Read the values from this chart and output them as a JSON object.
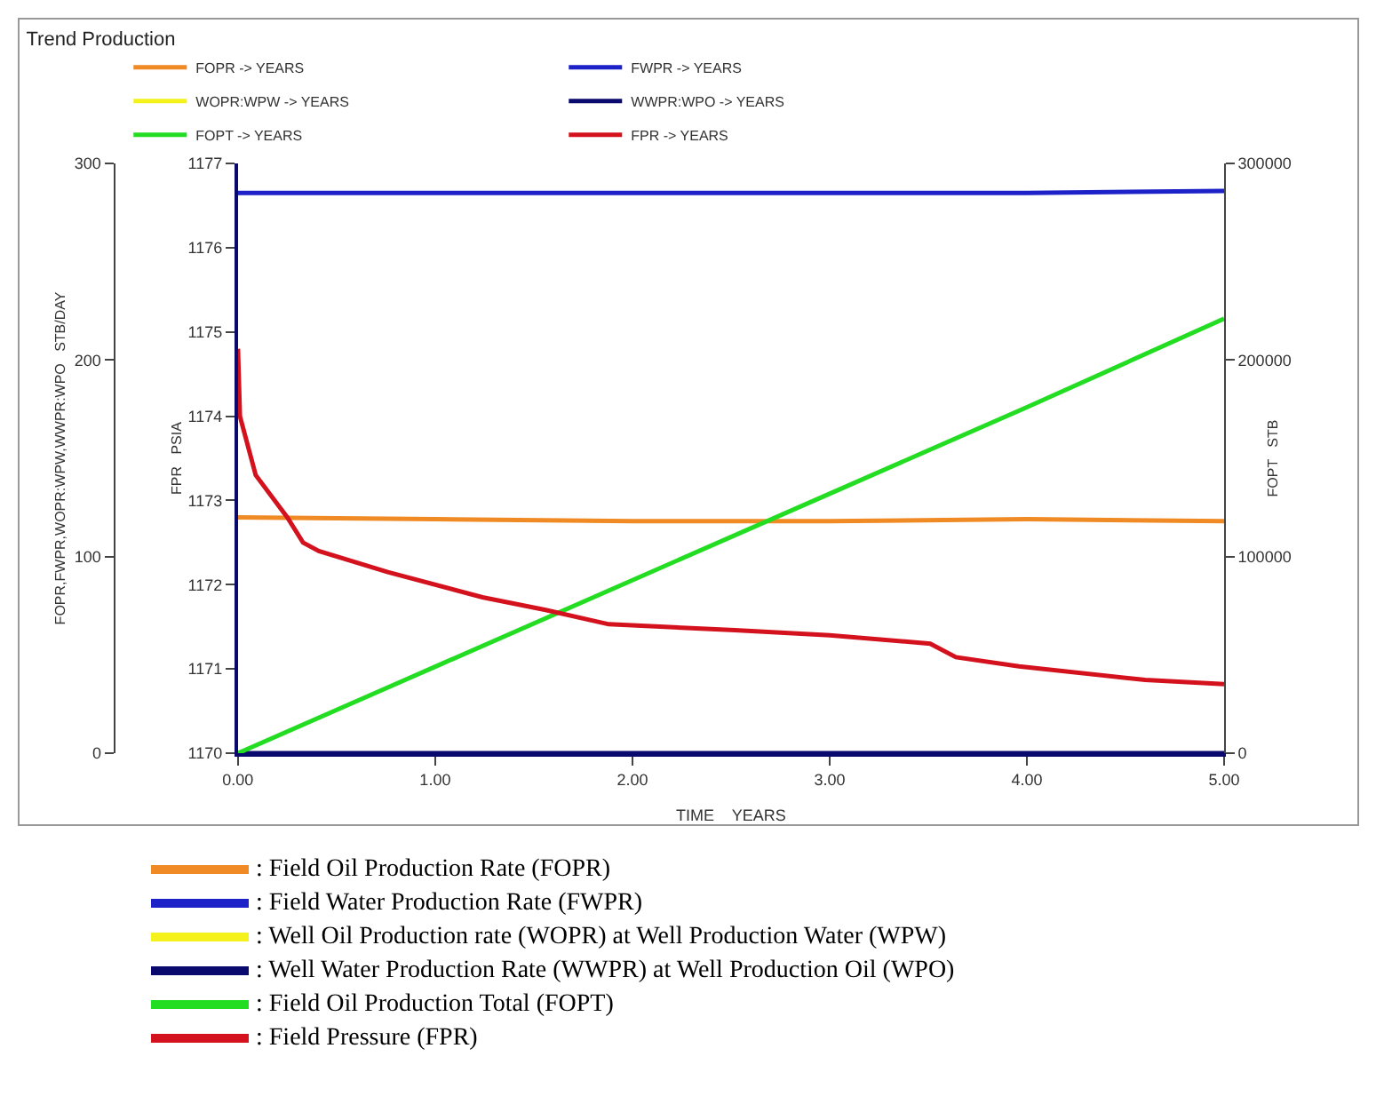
{
  "chart_data": {
    "type": "line",
    "title": "Trend Production",
    "xlabel": "TIME    YEARS",
    "ylabel": "FOPR,FWPR,WOPR:WPW,WWPR:WPO   STB/DAY",
    "y2label": "FOPT   STB",
    "y3label": "FPR   PSIA",
    "xlim": [
      0,
      5
    ],
    "xticks": [
      {
        "value": 0,
        "label": "0.00"
      },
      {
        "value": 1,
        "label": "1.00"
      },
      {
        "value": 2,
        "label": "2.00"
      },
      {
        "value": 3,
        "label": "3.00"
      },
      {
        "value": 4,
        "label": "4.00"
      },
      {
        "value": 5,
        "label": "5.00"
      }
    ],
    "ylim": [
      0,
      300
    ],
    "yticks": [
      0,
      100,
      200,
      300
    ],
    "y2lim": [
      0,
      300000
    ],
    "y2ticks": [
      0,
      100000,
      200000,
      300000
    ],
    "y3lim": [
      1170,
      1177
    ],
    "y3ticks": [
      1170,
      1171,
      1172,
      1173,
      1174,
      1175,
      1176,
      1177
    ],
    "x": [
      0,
      1,
      2,
      3,
      4,
      5
    ],
    "series": [
      {
        "name": "FOPR -> YEARS",
        "color": "#f08a24",
        "values": [
          120,
          119,
          118,
          118,
          119,
          118
        ]
      },
      {
        "name": "FWPR -> YEARS",
        "color": "#1c22c8",
        "values": [
          285,
          285,
          285,
          285,
          285,
          286
        ]
      },
      {
        "name": "WOPR:WPW -> YEARS",
        "color": "#f4f21a",
        "values": [
          null,
          null,
          null,
          null,
          null,
          null
        ]
      },
      {
        "name": "WWPR:WPO -> YEARS",
        "color": "#0a0a6e",
        "values": [
          0,
          0,
          0,
          0,
          0,
          0
        ]
      },
      {
        "name": "FOPT -> YEARS",
        "color": "#22dd22",
        "values": [
          0,
          44000,
          88000,
          132000,
          176000,
          221000
        ],
        "axis": "y2"
      },
      {
        "name": "FPR -> YEARS",
        "color": "#d4121e",
        "axis": "y3",
        "x": [
          0,
          0.01,
          0.09,
          0.25,
          0.33,
          0.41,
          0.76,
          1.24,
          1.56,
          1.88,
          2.52,
          3.0,
          3.51,
          3.64,
          3.96,
          4.6,
          5.0
        ],
        "values": [
          1174.8,
          1174.0,
          1173.3,
          1172.8,
          1172.5,
          1172.4,
          1172.15,
          1171.85,
          1171.7,
          1171.53,
          1171.46,
          1171.4,
          1171.3,
          1171.14,
          1171.03,
          1170.87,
          1170.82
        ]
      }
    ],
    "legend": "top",
    "annotations": [
      ": Field Oil Production Rate (FOPR)",
      ": Field Water Production Rate (FWPR)",
      ": Well Oil Production rate (WOPR) at Well Production Water (WPW)",
      ": Well Water Production Rate (WWPR) at Well Production Oil (WPO)",
      ": Field Oil Production Total (FOPT)",
      ": Field Pressure (FPR)"
    ]
  }
}
